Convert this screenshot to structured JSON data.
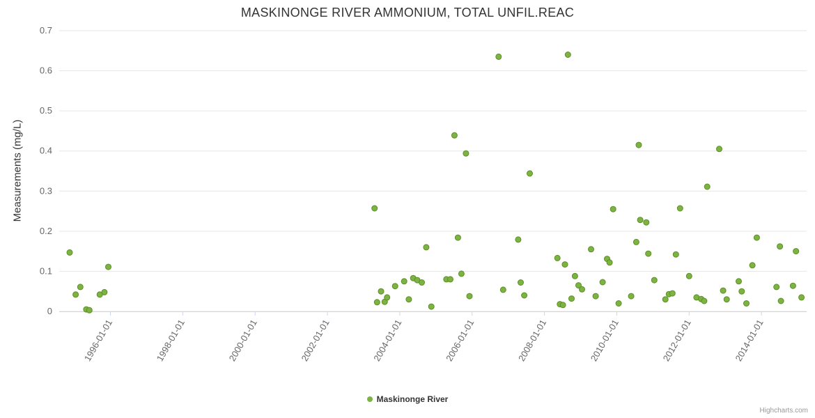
{
  "credits": "Highcharts.com",
  "chart_data": {
    "type": "scatter",
    "title": "MASKINONGE RIVER AMMONIUM, TOTAL UNFIL.REAC",
    "xlabel": "",
    "ylabel": "Measurements (mg/L)",
    "ylim": [
      0,
      0.7
    ],
    "y_ticks": [
      0,
      0.1,
      0.2,
      0.3,
      0.4,
      0.5,
      0.6,
      0.7
    ],
    "x_tick_labels": [
      "1996-01-01",
      "1998-01-01",
      "2000-01-01",
      "2002-01-01",
      "2004-01-01",
      "2006-01-01",
      "2008-01-01",
      "2010-01-01",
      "2012-01-01",
      "2014-01-01"
    ],
    "x_range": [
      "1994-08-01",
      "2015-04-01"
    ],
    "grid": true,
    "legend_position": "bottom",
    "series": [
      {
        "name": "Maskinonge River",
        "color": "#7cb342",
        "marker_stroke": "#5d8f25",
        "points": [
          [
            "1994-11-15",
            0.147
          ],
          [
            "1995-01-15",
            0.042
          ],
          [
            "1995-03-01",
            0.061
          ],
          [
            "1995-05-01",
            0.005
          ],
          [
            "1995-06-01",
            0.003
          ],
          [
            "1995-09-15",
            0.042
          ],
          [
            "1995-11-01",
            0.048
          ],
          [
            "1995-12-10",
            0.111
          ],
          [
            "2003-04-20",
            0.257
          ],
          [
            "2003-05-15",
            0.023
          ],
          [
            "2003-06-25",
            0.05
          ],
          [
            "2003-08-01",
            0.024
          ],
          [
            "2003-08-25",
            0.035
          ],
          [
            "2003-11-15",
            0.063
          ],
          [
            "2004-02-15",
            0.075
          ],
          [
            "2004-04-01",
            0.03
          ],
          [
            "2004-05-15",
            0.083
          ],
          [
            "2004-06-25",
            0.078
          ],
          [
            "2004-08-10",
            0.072
          ],
          [
            "2004-09-25",
            0.16
          ],
          [
            "2004-11-15",
            0.012
          ],
          [
            "2005-04-15",
            0.08
          ],
          [
            "2005-05-25",
            0.08
          ],
          [
            "2005-07-05",
            0.439
          ],
          [
            "2005-08-10",
            0.184
          ],
          [
            "2005-09-15",
            0.094
          ],
          [
            "2005-10-30",
            0.394
          ],
          [
            "2005-12-05",
            0.038
          ],
          [
            "2006-09-25",
            0.635
          ],
          [
            "2006-11-10",
            0.054
          ],
          [
            "2007-04-10",
            0.179
          ],
          [
            "2007-05-05",
            0.072
          ],
          [
            "2007-06-10",
            0.04
          ],
          [
            "2007-08-05",
            0.344
          ],
          [
            "2008-05-10",
            0.133
          ],
          [
            "2008-06-05",
            0.018
          ],
          [
            "2008-07-05",
            0.016
          ],
          [
            "2008-07-25",
            0.117
          ],
          [
            "2008-08-25",
            0.64
          ],
          [
            "2008-10-01",
            0.032
          ],
          [
            "2008-11-05",
            0.088
          ],
          [
            "2008-12-10",
            0.065
          ],
          [
            "2009-01-15",
            0.055
          ],
          [
            "2009-04-15",
            0.155
          ],
          [
            "2009-06-01",
            0.038
          ],
          [
            "2009-08-10",
            0.073
          ],
          [
            "2009-09-25",
            0.131
          ],
          [
            "2009-10-20",
            0.122
          ],
          [
            "2009-11-25",
            0.255
          ],
          [
            "2010-01-20",
            0.02
          ],
          [
            "2010-05-25",
            0.038
          ],
          [
            "2010-07-15",
            0.173
          ],
          [
            "2010-08-10",
            0.415
          ],
          [
            "2010-08-25",
            0.228
          ],
          [
            "2010-10-25",
            0.222
          ],
          [
            "2010-11-15",
            0.144
          ],
          [
            "2011-01-15",
            0.078
          ],
          [
            "2011-05-05",
            0.03
          ],
          [
            "2011-06-10",
            0.043
          ],
          [
            "2011-07-15",
            0.045
          ],
          [
            "2011-08-20",
            0.142
          ],
          [
            "2011-10-01",
            0.257
          ],
          [
            "2012-01-01",
            0.088
          ],
          [
            "2012-03-15",
            0.035
          ],
          [
            "2012-05-01",
            0.031
          ],
          [
            "2012-06-01",
            0.026
          ],
          [
            "2012-07-01",
            0.311
          ],
          [
            "2012-11-01",
            0.405
          ],
          [
            "2012-12-10",
            0.052
          ],
          [
            "2013-01-15",
            0.03
          ],
          [
            "2013-05-15",
            0.075
          ],
          [
            "2013-06-15",
            0.05
          ],
          [
            "2013-08-01",
            0.02
          ],
          [
            "2013-10-01",
            0.115
          ],
          [
            "2013-11-15",
            0.184
          ],
          [
            "2014-06-01",
            0.061
          ],
          [
            "2014-07-05",
            0.162
          ],
          [
            "2014-07-15",
            0.026
          ],
          [
            "2014-11-15",
            0.064
          ],
          [
            "2014-12-15",
            0.15
          ],
          [
            "2015-02-10",
            0.035
          ]
        ]
      }
    ]
  }
}
